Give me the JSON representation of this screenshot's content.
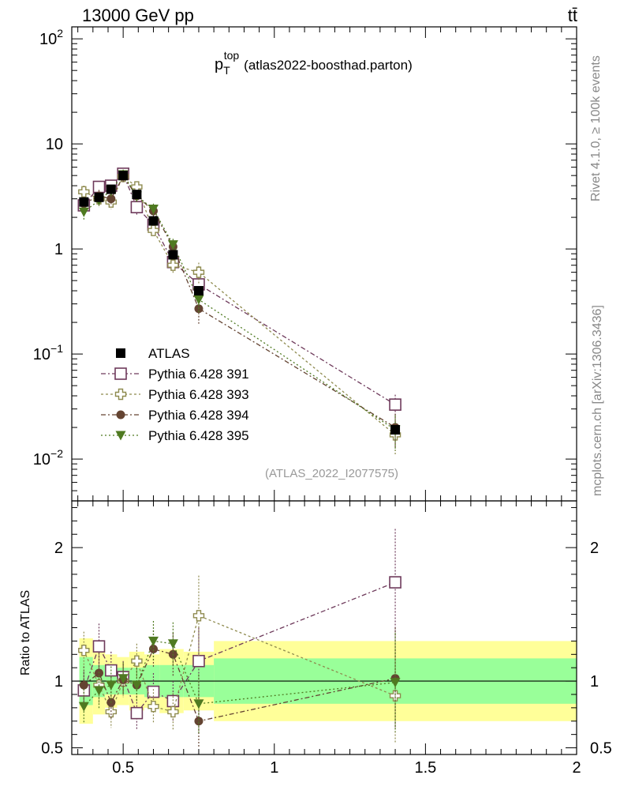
{
  "header": {
    "left": "13000 GeV pp",
    "right": "tt̄"
  },
  "side_labels": {
    "rivet": "Rivet 4.1.0, ≥ 100k events",
    "mcplots": "mcplots.cern.ch [arXiv:1306.3436]"
  },
  "chart_data": {
    "type": "scatter",
    "title": "p_T^top (atlas2022-boosthad.parton)",
    "title_main": "p",
    "title_sub": "T",
    "title_sup": "top",
    "title_rest": "(atlas2022-boosthad.parton)",
    "analysis_tag": "(ATLAS_2022_I2077575)",
    "xlim": [
      0.33,
      2.0
    ],
    "ylim_log": [
      0.004,
      130
    ],
    "ratio_ylim": [
      0.45,
      2.35
    ],
    "ratio_ylabel": "Ratio to ATLAS",
    "xticks": [
      {
        "v": 0.5,
        "label": "0.5"
      },
      {
        "v": 1.0,
        "label": "1"
      },
      {
        "v": 1.5,
        "label": "1.5"
      },
      {
        "v": 2.0,
        "label": "2"
      }
    ],
    "yticks_main": [
      {
        "v": 100,
        "base": "10",
        "exp": "2"
      },
      {
        "v": 10,
        "base": "10",
        "exp": ""
      },
      {
        "v": 1,
        "base": "1",
        "exp": ""
      },
      {
        "v": 0.1,
        "base": "10",
        "exp": "−1"
      },
      {
        "v": 0.01,
        "base": "10",
        "exp": "−2"
      }
    ],
    "yticks_ratio": [
      {
        "v": 2,
        "label": "2"
      },
      {
        "v": 1,
        "label": "1"
      },
      {
        "v": 0.5,
        "label": "0.5"
      }
    ],
    "bin_edges": [
      0.355,
      0.4,
      0.44,
      0.48,
      0.52,
      0.57,
      0.62,
      0.7,
      0.8,
      2.0
    ],
    "x": [
      0.37,
      0.42,
      0.46,
      0.5,
      0.545,
      0.6,
      0.665,
      0.75,
      1.4
    ],
    "data": {
      "name": "ATLAS",
      "color": "#000000",
      "values": [
        2.8,
        3.1,
        3.7,
        5.0,
        3.3,
        1.85,
        0.88,
        0.4,
        0.019
      ],
      "unc_inner": [
        0.18,
        0.12,
        0.1,
        0.1,
        0.1,
        0.12,
        0.12,
        0.12,
        0.17
      ],
      "unc_outer": [
        0.32,
        0.25,
        0.2,
        0.18,
        0.22,
        0.2,
        0.24,
        0.22,
        0.3
      ]
    },
    "series": [
      {
        "name": "Pythia 6.428 391",
        "color": "#6e3a5b",
        "marker": "open-square",
        "values": [
          2.6,
          3.9,
          4.0,
          5.2,
          2.5,
          1.7,
          0.75,
          0.46,
          0.033
        ],
        "errors": [
          0.4,
          0.5,
          0.5,
          0.6,
          0.4,
          0.25,
          0.12,
          0.12,
          0.008
        ]
      },
      {
        "name": "Pythia 6.428 393",
        "color": "#8e8a4e",
        "marker": "open-cross",
        "values": [
          3.5,
          3.0,
          2.8,
          4.9,
          3.9,
          1.5,
          0.7,
          0.6,
          0.017
        ],
        "errors": [
          0.5,
          0.45,
          0.4,
          0.6,
          0.45,
          0.2,
          0.11,
          0.14,
          0.006
        ]
      },
      {
        "name": "Pythia 6.428 394",
        "color": "#644432",
        "marker": "filled-circle",
        "values": [
          2.7,
          3.2,
          3.0,
          4.9,
          3.2,
          2.3,
          1.05,
          0.27,
          0.02
        ],
        "errors": [
          0.4,
          0.45,
          0.4,
          0.6,
          0.4,
          0.28,
          0.15,
          0.08,
          0.007
        ]
      },
      {
        "name": "Pythia 6.428 395",
        "color": "#4f7a21",
        "marker": "filled-triangle-down",
        "values": [
          2.25,
          2.9,
          3.6,
          5.1,
          3.2,
          2.4,
          1.1,
          0.33,
          0.019
        ],
        "errors": [
          0.35,
          0.4,
          0.45,
          0.6,
          0.4,
          0.3,
          0.15,
          0.09,
          0.007
        ]
      }
    ],
    "ratios": [
      {
        "name": "Pythia 6.428 391",
        "values": [
          0.93,
          1.26,
          1.08,
          1.03,
          0.76,
          0.92,
          0.85,
          1.15,
          1.74
        ],
        "errors": [
          0.14,
          0.17,
          0.14,
          0.12,
          0.13,
          0.14,
          0.15,
          0.25,
          0.4
        ]
      },
      {
        "name": "Pythia 6.428 393",
        "values": [
          1.23,
          0.97,
          0.77,
          1.0,
          1.15,
          0.81,
          0.77,
          1.49,
          0.89
        ],
        "errors": [
          0.14,
          0.14,
          0.12,
          0.12,
          0.13,
          0.13,
          0.14,
          0.3,
          0.35
        ]
      },
      {
        "name": "Pythia 6.428 394",
        "values": [
          0.97,
          1.06,
          0.84,
          1.01,
          0.97,
          1.24,
          1.2,
          0.7,
          1.02
        ],
        "errors": [
          0.14,
          0.15,
          0.13,
          0.12,
          0.13,
          0.14,
          0.16,
          0.2,
          0.38
        ]
      },
      {
        "name": "Pythia 6.428 395",
        "values": [
          0.81,
          0.93,
          0.97,
          1.02,
          0.97,
          1.3,
          1.28,
          0.83,
          0.99
        ],
        "errors": [
          0.13,
          0.14,
          0.14,
          0.12,
          0.13,
          0.15,
          0.16,
          0.22,
          0.37
        ]
      }
    ],
    "ratio_bands": {
      "inner": [
        0.18,
        0.12,
        0.1,
        0.1,
        0.1,
        0.12,
        0.12,
        0.12,
        0.17
      ],
      "outer": [
        0.32,
        0.25,
        0.2,
        0.18,
        0.22,
        0.2,
        0.24,
        0.22,
        0.3
      ],
      "inner_color": "#99ff99",
      "outer_color": "#ffff99"
    }
  }
}
